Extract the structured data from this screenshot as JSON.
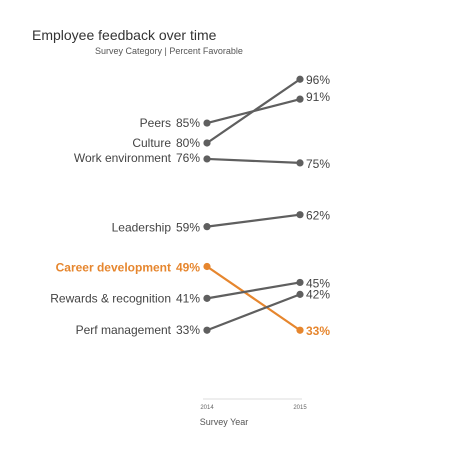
{
  "chart_data": {
    "type": "line",
    "title": "Employee feedback over time",
    "subtitle": "Survey Category | Percent Favorable",
    "xlabel": "Survey Year",
    "x": [
      "2014",
      "2015"
    ],
    "ylim": [
      25,
      100
    ],
    "value_suffix": "%",
    "grid": false,
    "legend": "none",
    "colors": {
      "default": "#5f5f5f",
      "highlight": "#e6862e"
    },
    "series": [
      {
        "name": "Peers",
        "values": [
          85,
          91
        ],
        "highlight": false
      },
      {
        "name": "Culture",
        "values": [
          80,
          96
        ],
        "highlight": false
      },
      {
        "name": "Work environment",
        "values": [
          76,
          75
        ],
        "highlight": false
      },
      {
        "name": "Leadership",
        "values": [
          59,
          62
        ],
        "highlight": false
      },
      {
        "name": "Career development",
        "values": [
          49,
          33
        ],
        "highlight": true
      },
      {
        "name": "Rewards & recognition",
        "values": [
          41,
          45
        ],
        "highlight": false
      },
      {
        "name": "Perf management",
        "values": [
          33,
          42
        ],
        "highlight": false
      }
    ]
  }
}
